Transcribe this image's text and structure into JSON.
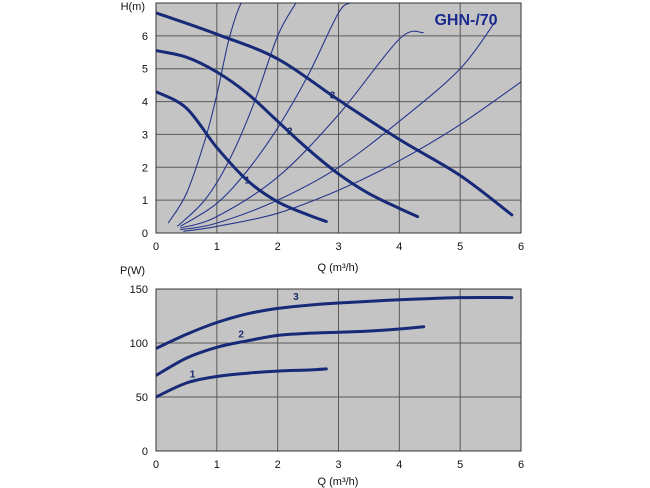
{
  "chart_data": [
    {
      "type": "line",
      "title": "GHN-/70",
      "ylabel": "H(m)",
      "xlabel": "Q (m³/h)",
      "xlim": [
        0,
        6
      ],
      "ylim": [
        0,
        7
      ],
      "xticks": [
        0,
        1,
        2,
        3,
        4,
        5,
        6
      ],
      "yticks": [
        0,
        1,
        2,
        3,
        4,
        5,
        6
      ],
      "grid": true,
      "series": [
        {
          "name": "1",
          "x": [
            0,
            0.5,
            1,
            1.5,
            2,
            2.5,
            2.8
          ],
          "y": [
            4.3,
            3.8,
            2.6,
            1.6,
            0.95,
            0.55,
            0.35
          ]
        },
        {
          "name": "2",
          "x": [
            0,
            0.5,
            1,
            1.5,
            2,
            2.5,
            3,
            3.5,
            4,
            4.3
          ],
          "y": [
            5.55,
            5.35,
            4.9,
            4.25,
            3.4,
            2.55,
            1.8,
            1.2,
            0.75,
            0.5
          ]
        },
        {
          "name": "3",
          "x": [
            0,
            1,
            2,
            3,
            4,
            5,
            5.85
          ],
          "y": [
            6.7,
            6.05,
            5.3,
            4.05,
            2.85,
            1.75,
            0.55
          ]
        }
      ],
      "system_curves": [
        {
          "x": [
            0.2,
            0.5,
            0.8,
            1.0,
            1.2,
            1.4,
            1.5
          ],
          "y": [
            0.3,
            1.2,
            2.8,
            4.2,
            5.9,
            7.0,
            7.0
          ]
        },
        {
          "x": [
            0.35,
            0.8,
            1.2,
            1.6,
            2.0,
            2.3
          ],
          "y": [
            0.2,
            1.0,
            2.2,
            3.9,
            6.0,
            7.0
          ]
        },
        {
          "x": [
            0.4,
            1.0,
            1.5,
            2.0,
            2.5,
            3.0,
            3.2
          ],
          "y": [
            0.2,
            0.9,
            1.9,
            3.2,
            4.8,
            6.7,
            7.0
          ]
        },
        {
          "x": [
            0.4,
            1.0,
            2.0,
            3.0,
            4.0,
            4.4
          ],
          "y": [
            0.15,
            0.5,
            1.7,
            3.6,
            5.9,
            6.1
          ]
        },
        {
          "x": [
            0.4,
            1.0,
            2.0,
            3.0,
            4.0,
            5.0,
            5.6
          ],
          "y": [
            0.1,
            0.3,
            1.0,
            2.0,
            3.4,
            5.0,
            6.5
          ]
        },
        {
          "x": [
            0.45,
            1.0,
            2.0,
            3.0,
            4.0,
            5.0,
            6.0
          ],
          "y": [
            0.05,
            0.2,
            0.6,
            1.3,
            2.2,
            3.3,
            4.6
          ]
        }
      ]
    },
    {
      "type": "line",
      "title": "",
      "ylabel": "P(W)",
      "xlabel": "Q (m³/h)",
      "xlim": [
        0,
        6
      ],
      "ylim": [
        0,
        150
      ],
      "xticks": [
        0,
        1,
        2,
        3,
        4,
        5,
        6
      ],
      "yticks": [
        0,
        50,
        100,
        150
      ],
      "grid": true,
      "series": [
        {
          "name": "1",
          "x": [
            0,
            0.5,
            1,
            1.5,
            2,
            2.5,
            2.8
          ],
          "y": [
            50,
            63,
            69,
            72,
            74,
            75,
            76
          ]
        },
        {
          "name": "2",
          "x": [
            0,
            0.5,
            1,
            1.5,
            2,
            2.5,
            3,
            3.5,
            4,
            4.4
          ],
          "y": [
            70,
            86,
            96,
            102,
            107,
            109,
            110,
            111,
            113,
            115
          ]
        },
        {
          "name": "3",
          "x": [
            0,
            0.5,
            1,
            1.5,
            2,
            2.5,
            3,
            4,
            5,
            5.85
          ],
          "y": [
            95,
            108,
            119,
            127,
            132,
            135,
            137,
            140,
            142,
            142
          ]
        }
      ]
    }
  ]
}
